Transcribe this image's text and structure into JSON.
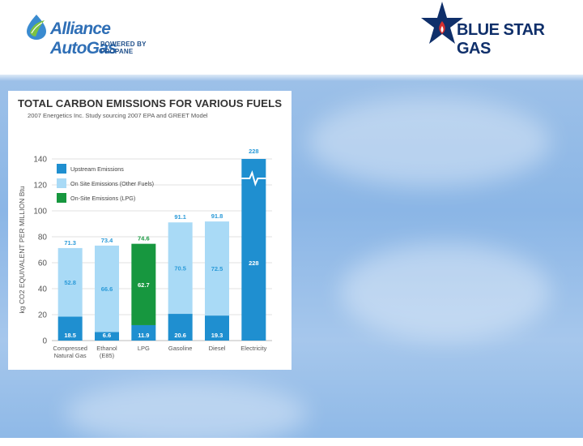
{
  "logos": {
    "alliance": {
      "name": "Alliance AutoGas",
      "tagline": "POWERED BY PROPANE",
      "color": "#2f6fb6"
    },
    "bluestar": {
      "name": "BLUE STAR GAS",
      "color": "#0f2f6a",
      "accent": "#d32f2f"
    }
  },
  "chart_data": {
    "type": "bar",
    "title": "TOTAL CARBON EMISSIONS FOR VARIOUS FUELS",
    "subtitle": "2007 Energetics Inc. Study sourcing 2007 EPA and GREET Model",
    "ylabel": "kg CO2 EQUIVALENT PER MILLION Btu",
    "xlabel": "",
    "ylim": [
      0,
      140
    ],
    "yticks": [
      0,
      20,
      40,
      60,
      80,
      100,
      120,
      140
    ],
    "grid": true,
    "stacked": true,
    "axis_break": true,
    "legend_position": "top-left",
    "categories": [
      [
        "Compressed",
        "Natural Gas"
      ],
      [
        "Ethanol",
        "(E85)"
      ],
      [
        "LPG"
      ],
      [
        "Gasoline"
      ],
      [
        "Diesel"
      ],
      [
        "Electricity"
      ]
    ],
    "series": [
      {
        "name": "Upstream Emissions",
        "color": "#1f8fd0",
        "values": [
          18.5,
          6.6,
          11.9,
          20.6,
          19.3,
          228
        ],
        "labels": [
          "18.5",
          "6.6",
          "11.9",
          "20.6",
          "19.3",
          "228"
        ]
      },
      {
        "name": "On Site Emissions (Other Fuels)",
        "color": "#a9daf6",
        "values": [
          52.8,
          66.6,
          null,
          70.5,
          72.5,
          null
        ],
        "labels": [
          "52.8",
          "66.6",
          "",
          "70.5",
          "72.5",
          ""
        ]
      },
      {
        "name": "On-Site Emissions (LPG)",
        "color": "#17973f",
        "values": [
          null,
          null,
          62.7,
          null,
          null,
          null
        ],
        "labels": [
          "",
          "",
          "62.7",
          "",
          "",
          ""
        ]
      }
    ],
    "totals": [
      71.3,
      73.4,
      74.6,
      91.1,
      91.8,
      228
    ],
    "total_labels": [
      "71.3",
      "73.4",
      "74.6",
      "91.1",
      "91.8",
      "228"
    ],
    "label_color": "#2b9ad8",
    "grid_color": "#d8d8d8",
    "axis_text_color": "#555555"
  }
}
